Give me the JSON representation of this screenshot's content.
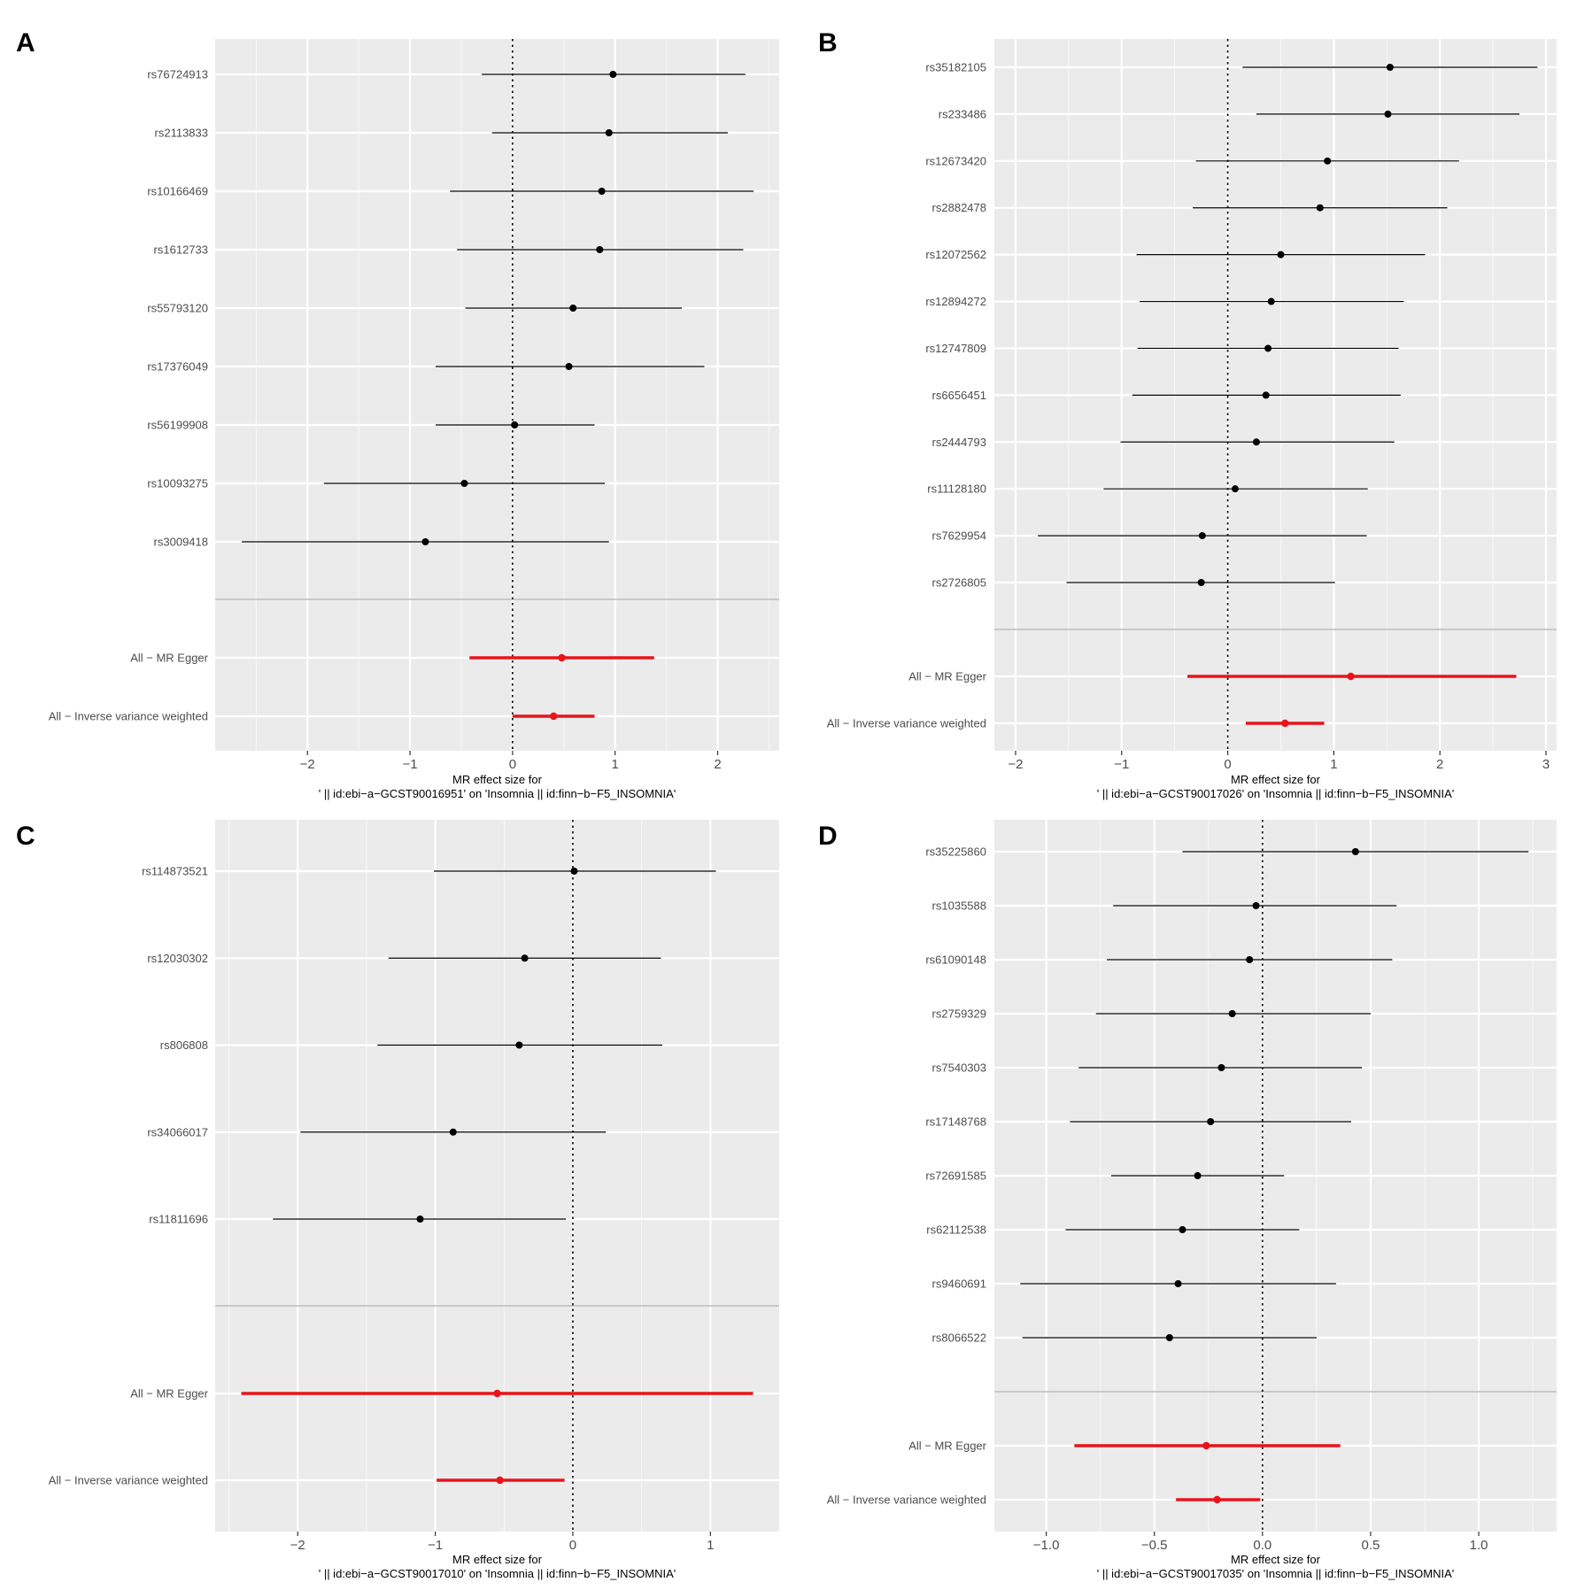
{
  "chart_data": [
    {
      "type": "forest",
      "panel_label": "A",
      "xlim": [
        -2.9,
        2.6
      ],
      "x_ticks": [
        -2,
        -1,
        0,
        1,
        2
      ],
      "x_tick_labels": [
        "−2",
        "−1",
        "0",
        "1",
        "2"
      ],
      "xlabel_line1": "MR effect size for",
      "xlabel_line2": "' || id:ebi−a−GCST90016951' on 'Insomnia || id:finn−b−F5_INSOMNIA'",
      "snps": [
        {
          "label": "rs76724913",
          "estimate": 0.98,
          "lower": -0.3,
          "upper": 2.27
        },
        {
          "label": "rs2113833",
          "estimate": 0.94,
          "lower": -0.2,
          "upper": 2.1
        },
        {
          "label": "rs10166469",
          "estimate": 0.87,
          "lower": -0.61,
          "upper": 2.35
        },
        {
          "label": "rs1612733",
          "estimate": 0.85,
          "lower": -0.54,
          "upper": 2.25
        },
        {
          "label": "rs55793120",
          "estimate": 0.59,
          "lower": -0.46,
          "upper": 1.65
        },
        {
          "label": "rs17376049",
          "estimate": 0.55,
          "lower": -0.75,
          "upper": 1.87
        },
        {
          "label": "rs56199908",
          "estimate": 0.02,
          "lower": -0.75,
          "upper": 0.8
        },
        {
          "label": "rs10093275",
          "estimate": -0.47,
          "lower": -1.84,
          "upper": 0.9
        },
        {
          "label": "rs3009418",
          "estimate": -0.85,
          "lower": -2.64,
          "upper": 0.94
        }
      ],
      "summary": [
        {
          "label": "All − MR Egger",
          "estimate": 0.48,
          "lower": -0.42,
          "upper": 1.38
        },
        {
          "label": "All − Inverse variance weighted",
          "estimate": 0.4,
          "lower": 0.0,
          "upper": 0.8
        }
      ]
    },
    {
      "type": "forest",
      "panel_label": "B",
      "xlim": [
        -2.2,
        3.1
      ],
      "x_ticks": [
        -2,
        -1,
        0,
        1,
        2,
        3
      ],
      "x_tick_labels": [
        "−2",
        "−1",
        "0",
        "1",
        "2",
        "3"
      ],
      "xlabel_line1": "MR effect size for",
      "xlabel_line2": "' || id:ebi−a−GCST90017026' on 'Insomnia || id:finn−b−F5_INSOMNIA'",
      "snps": [
        {
          "label": "rs35182105",
          "estimate": 1.53,
          "lower": 0.14,
          "upper": 2.92
        },
        {
          "label": "rs233486",
          "estimate": 1.51,
          "lower": 0.27,
          "upper": 2.75
        },
        {
          "label": "rs12673420",
          "estimate": 0.94,
          "lower": -0.3,
          "upper": 2.18
        },
        {
          "label": "rs2882478",
          "estimate": 0.87,
          "lower": -0.33,
          "upper": 2.07
        },
        {
          "label": "rs12072562",
          "estimate": 0.5,
          "lower": -0.86,
          "upper": 1.86
        },
        {
          "label": "rs12894272",
          "estimate": 0.41,
          "lower": -0.83,
          "upper": 1.66
        },
        {
          "label": "rs12747809",
          "estimate": 0.38,
          "lower": -0.85,
          "upper": 1.61
        },
        {
          "label": "rs6656451",
          "estimate": 0.36,
          "lower": -0.9,
          "upper": 1.63
        },
        {
          "label": "rs2444793",
          "estimate": 0.27,
          "lower": -1.01,
          "upper": 1.57
        },
        {
          "label": "rs11128180",
          "estimate": 0.07,
          "lower": -1.17,
          "upper": 1.32
        },
        {
          "label": "rs7629954",
          "estimate": -0.24,
          "lower": -1.79,
          "upper": 1.31
        },
        {
          "label": "rs2726805",
          "estimate": -0.25,
          "lower": -1.52,
          "upper": 1.01
        }
      ],
      "summary": [
        {
          "label": "All − MR Egger",
          "estimate": 1.16,
          "lower": -0.38,
          "upper": 2.72
        },
        {
          "label": "All − Inverse variance weighted",
          "estimate": 0.54,
          "lower": 0.17,
          "upper": 0.91
        }
      ]
    },
    {
      "type": "forest",
      "panel_label": "C",
      "xlim": [
        -2.6,
        1.5
      ],
      "x_ticks": [
        -2,
        -1,
        0,
        1
      ],
      "x_tick_labels": [
        "−2",
        "−1",
        "0",
        "1"
      ],
      "xlabel_line1": "MR effect size for",
      "xlabel_line2": "' || id:ebi−a−GCST90017010' on 'Insomnia || id:finn−b−F5_INSOMNIA'",
      "snps": [
        {
          "label": "rs114873521",
          "estimate": 0.01,
          "lower": -1.01,
          "upper": 1.04
        },
        {
          "label": "rs12030302",
          "estimate": -0.35,
          "lower": -1.34,
          "upper": 0.64
        },
        {
          "label": "rs806808",
          "estimate": -0.39,
          "lower": -1.42,
          "upper": 0.65
        },
        {
          "label": "rs34066017",
          "estimate": -0.87,
          "lower": -1.98,
          "upper": 0.24
        },
        {
          "label": "rs11811696",
          "estimate": -1.11,
          "lower": -2.18,
          "upper": -0.05
        }
      ],
      "summary": [
        {
          "label": "All − MR Egger",
          "estimate": -0.55,
          "lower": -2.41,
          "upper": 1.31
        },
        {
          "label": "All − Inverse variance weighted",
          "estimate": -0.53,
          "lower": -0.99,
          "upper": -0.06
        }
      ]
    },
    {
      "type": "forest",
      "panel_label": "D",
      "xlim": [
        -1.24,
        1.36
      ],
      "x_ticks": [
        -1.0,
        -0.5,
        0.0,
        0.5,
        1.0
      ],
      "x_tick_labels": [
        "−1.0",
        "−0.5",
        "0.0",
        "0.5",
        "1.0"
      ],
      "xlabel_line1": "MR effect size for",
      "xlabel_line2": "' || id:ebi−a−GCST90017035' on 'Insomnia || id:finn−b−F5_INSOMNIA'",
      "snps": [
        {
          "label": "rs35225860",
          "estimate": 0.43,
          "lower": -0.37,
          "upper": 1.23
        },
        {
          "label": "rs1035588",
          "estimate": -0.03,
          "lower": -0.69,
          "upper": 0.62
        },
        {
          "label": "rs61090148",
          "estimate": -0.06,
          "lower": -0.72,
          "upper": 0.6
        },
        {
          "label": "rs2759329",
          "estimate": -0.14,
          "lower": -0.77,
          "upper": 0.5
        },
        {
          "label": "rs7540303",
          "estimate": -0.19,
          "lower": -0.85,
          "upper": 0.46
        },
        {
          "label": "rs17148768",
          "estimate": -0.24,
          "lower": -0.89,
          "upper": 0.41
        },
        {
          "label": "rs72691585",
          "estimate": -0.3,
          "lower": -0.7,
          "upper": 0.1
        },
        {
          "label": "rs62112538",
          "estimate": -0.37,
          "lower": -0.91,
          "upper": 0.17
        },
        {
          "label": "rs9460691",
          "estimate": -0.39,
          "lower": -1.12,
          "upper": 0.34
        },
        {
          "label": "rs8066522",
          "estimate": -0.43,
          "lower": -1.11,
          "upper": 0.25
        }
      ],
      "summary": [
        {
          "label": "All − MR Egger",
          "estimate": -0.26,
          "lower": -0.87,
          "upper": 0.36
        },
        {
          "label": "All − Inverse variance weighted",
          "estimate": -0.21,
          "lower": -0.4,
          "upper": -0.01
        }
      ]
    }
  ],
  "colors": {
    "summary": "#e8141a",
    "point": "#000000",
    "panel_background": "#ebebeb"
  }
}
